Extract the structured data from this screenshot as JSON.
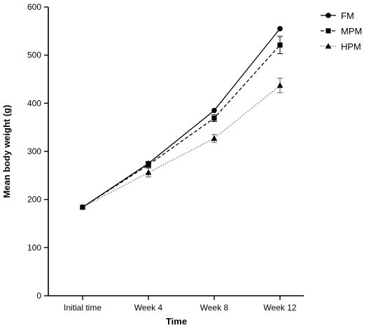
{
  "chart_data": {
    "type": "line",
    "title": "",
    "xlabel": "Time",
    "ylabel": "Mean body weight (g)",
    "categories": [
      "Initial time",
      "Week 4",
      "Week 8",
      "Week 12"
    ],
    "ylim": [
      0,
      600
    ],
    "yticks": [
      0,
      100,
      200,
      300,
      400,
      500,
      600
    ],
    "grid": false,
    "legend_position": "top-right",
    "series": [
      {
        "name": "FM",
        "marker": "circle",
        "line_style": "solid",
        "color": "#000000",
        "values": [
          184,
          275,
          385,
          555
        ],
        "errors": [
          2,
          4,
          3,
          3
        ]
      },
      {
        "name": "MPM",
        "marker": "square",
        "line_style": "dashed",
        "color": "#000000",
        "values": [
          184,
          272,
          369,
          521
        ],
        "errors": [
          2,
          5,
          7,
          18
        ]
      },
      {
        "name": "HPM",
        "marker": "triangle",
        "line_style": "dotted",
        "color": "#555555",
        "values": [
          184,
          256,
          327,
          437
        ],
        "errors": [
          2,
          9,
          8,
          15
        ]
      }
    ]
  }
}
